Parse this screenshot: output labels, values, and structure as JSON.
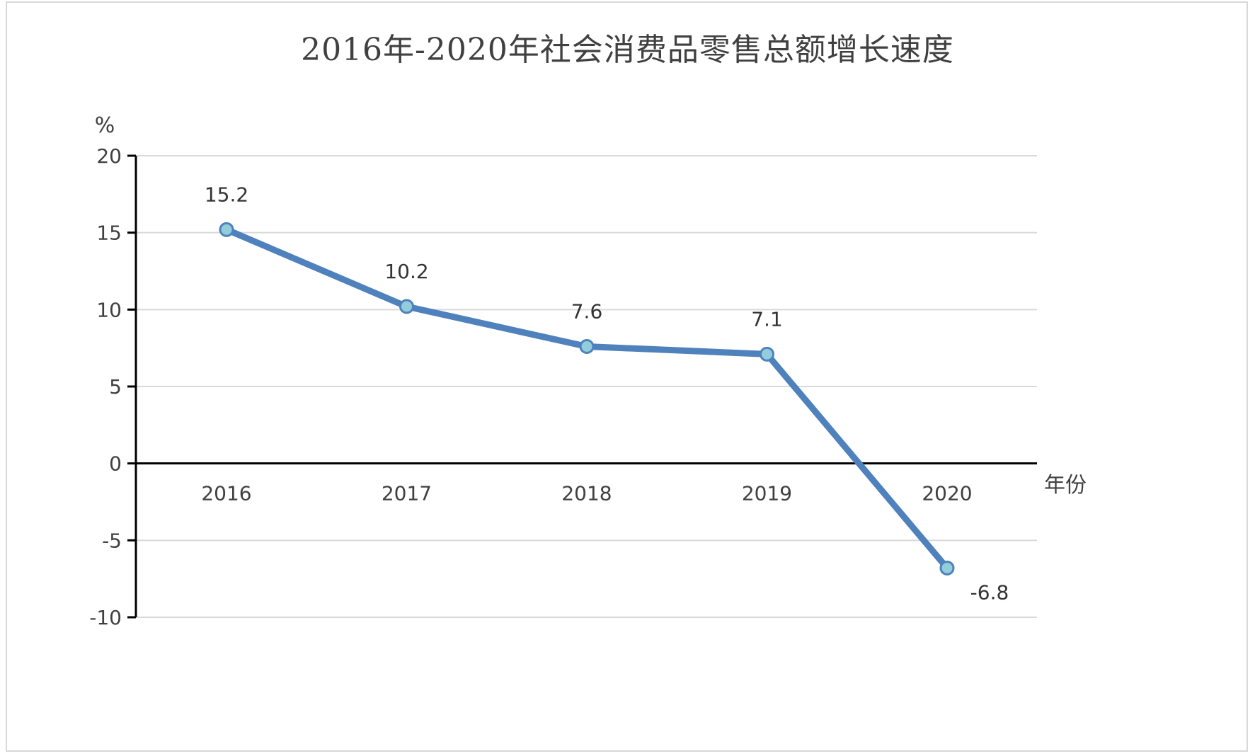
{
  "chart_data": {
    "type": "line",
    "title": "2016年-2020年社会消费品零售总额增长速度",
    "xlabel": "年份",
    "ylabel": "%",
    "categories": [
      "2016",
      "2017",
      "2018",
      "2019",
      "2020"
    ],
    "series": [
      {
        "values": [
          15.2,
          10.2,
          7.6,
          7.1,
          -6.8
        ],
        "labels": [
          "15.2",
          "10.2",
          "7.6",
          "7.1",
          "-6.8"
        ]
      }
    ],
    "ylim": [
      -10,
      20
    ],
    "yticks": [
      "-10",
      "-5",
      "0",
      "5",
      "10",
      "15",
      "20"
    ],
    "grid": true,
    "legend": "none",
    "colors": {
      "line": "#4f81bd",
      "marker_fill": "#92cddc",
      "marker_stroke": "#4f81bd",
      "grid": "#d9d9d9",
      "axis": "#000000"
    }
  }
}
